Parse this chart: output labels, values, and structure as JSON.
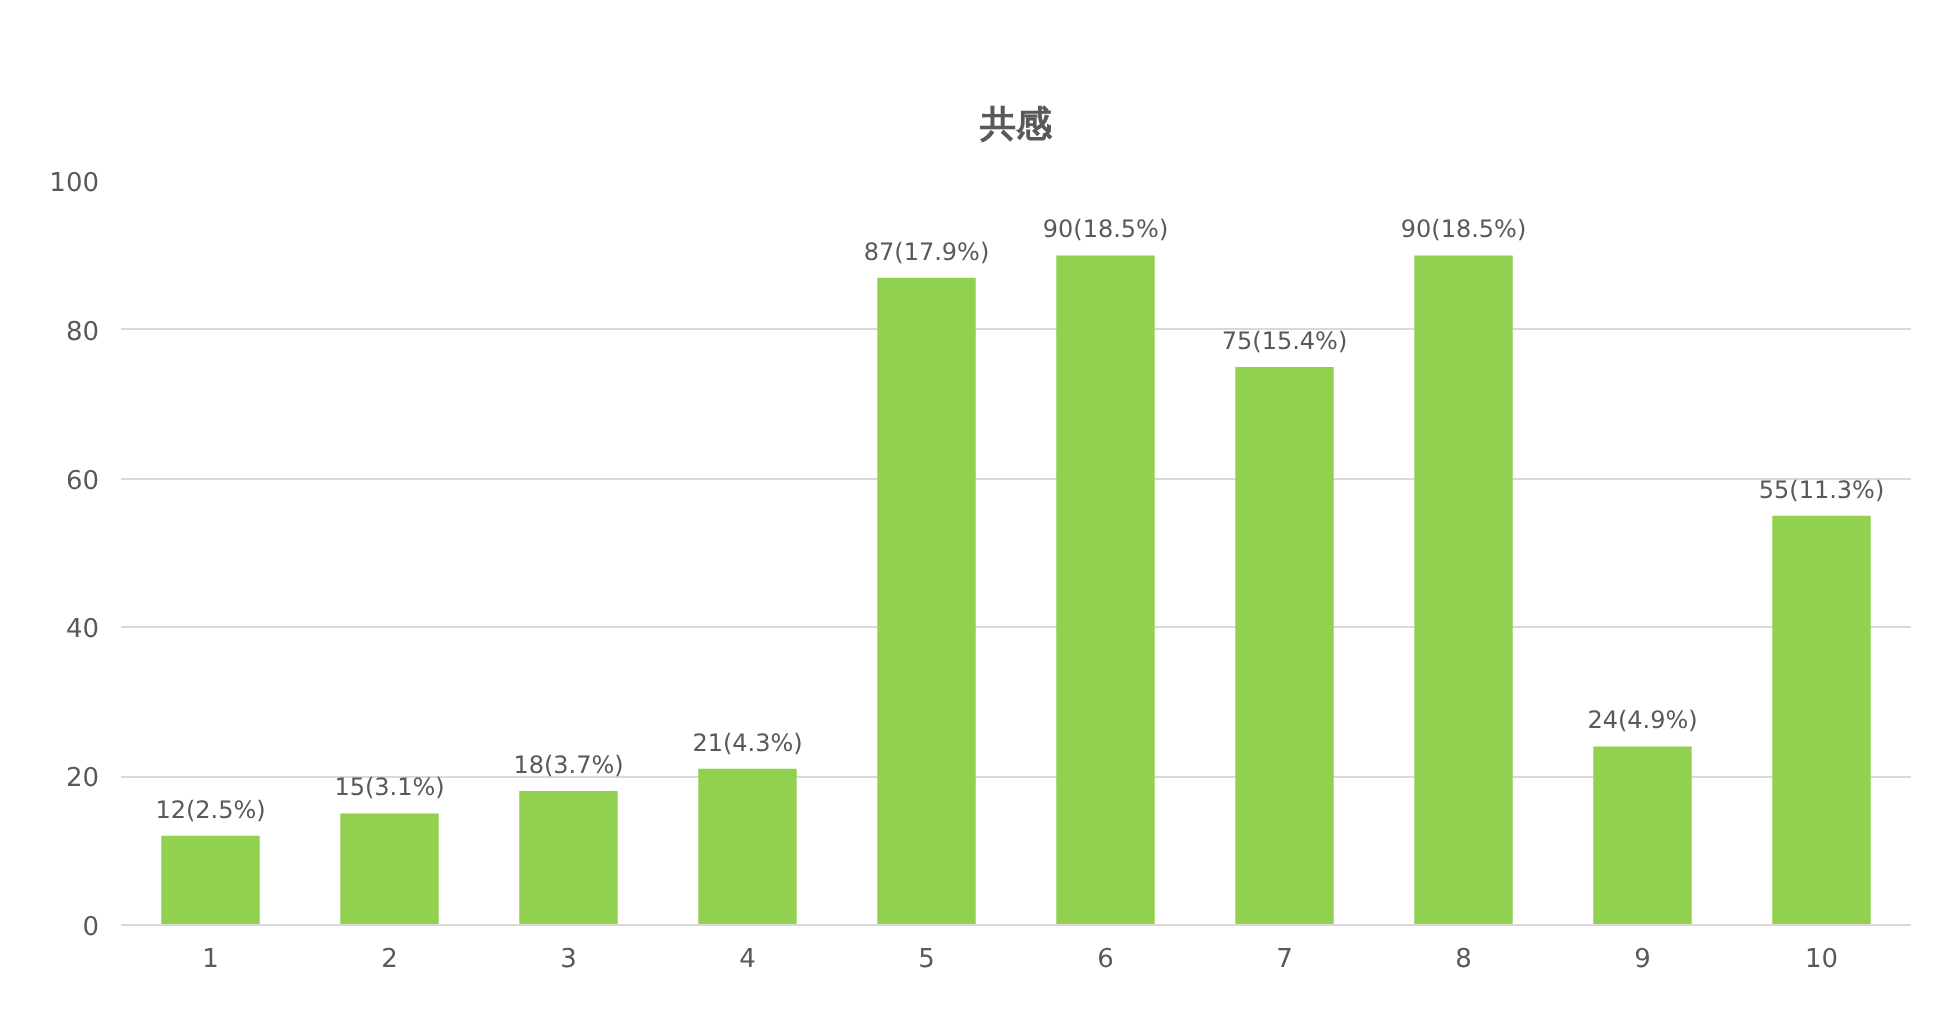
{
  "chart_data": {
    "type": "bar",
    "title": "共感",
    "categories": [
      "1",
      "2",
      "3",
      "4",
      "5",
      "6",
      "7",
      "8",
      "9",
      "10"
    ],
    "values": [
      12,
      15,
      18,
      21,
      87,
      90,
      75,
      90,
      24,
      55
    ],
    "value_labels": [
      "12(2.5%)",
      "15(3.1%)",
      "18(3.7%)",
      "21(4.3%)",
      "87(17.9%)",
      "90(18.5%)",
      "75(15.4%)",
      "90(18.5%)",
      "24(4.9%)",
      "55(11.3%)"
    ],
    "color": "#92d050",
    "ylim": [
      0,
      100
    ],
    "yticks": [
      0,
      20,
      40,
      60,
      80,
      100
    ],
    "grid": "y"
  }
}
